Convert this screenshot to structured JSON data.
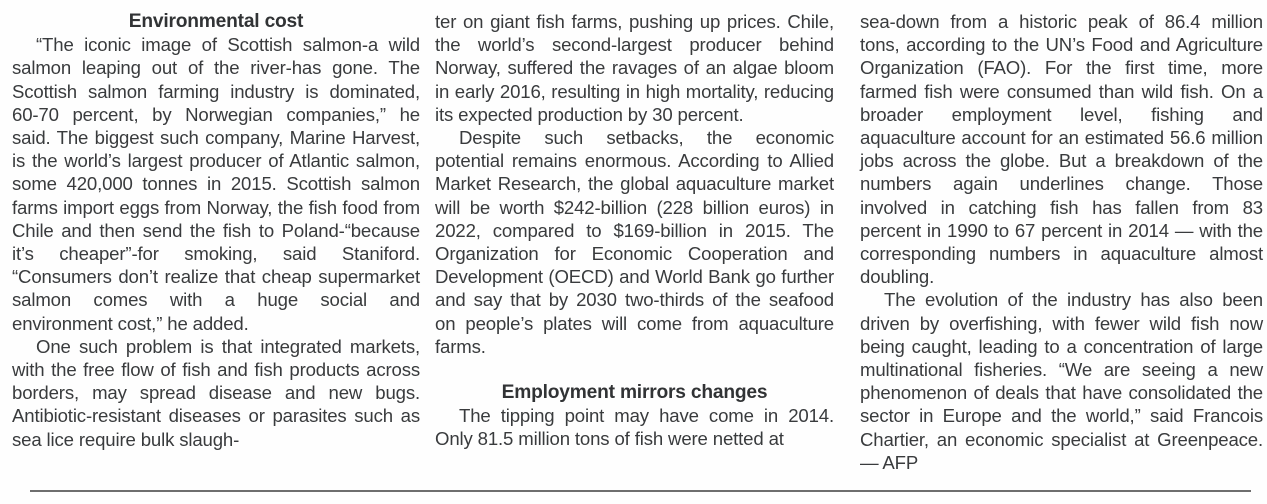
{
  "article": {
    "text_color": "#393b3d",
    "rule_color": "#6e6e6e",
    "byline": "AFP",
    "columns": [
      {
        "heading": "Environmental cost",
        "para1": "“The iconic image of Scottish salmon-a wild salmon leaping out of the river-has gone. The Scottish salmon farming industry is dominated, 60-70 percent, by Norwegian companies,” he said. The biggest such company, Marine Harvest, is the world’s largest producer of Atlantic salmon, some 420,000 tonnes in 2015.  Scottish salmon farms import eggs from Norway, the fish food from Chile and then send the fish to Poland-“because it’s cheaper”-for smoking, said Staniford. “Consumers don’t realize that cheap supermarket salmon comes with a huge social and environment cost,” he added.",
        "para2": "One such problem is that integrated markets, with the free flow of fish and fish products across borders, may spread disease and new bugs.  Antibiotic-resistant diseases or parasites such as sea lice require bulk slaugh-"
      },
      {
        "para1": "ter on giant fish farms, pushing up prices. Chile, the world’s second-largest producer behind Norway, suffered the ravages of an algae bloom in early 2016, resulting in high mortality, reducing its expected production by 30 percent.",
        "para2": "Despite such setbacks, the economic potential remains enormous. According to Allied Market Research, the global aquaculture market will be worth $242-billion (228 billion euros) in 2022, compared to $169-billion in 2015. The Organization for Economic Cooperation and Development (OECD) and World Bank go further and say that by 2030 two-thirds of the seafood on people’s plates will come from aquaculture farms.",
        "heading": "Employment mirrors changes",
        "para3": "The tipping point may have come in 2014. Only 81.5 million tons of fish were netted at"
      },
      {
        "para1": "sea-down from a historic peak of 86.4 million tons, according to the UN’s Food and Agriculture Organization (FAO). For the first time, more farmed fish were consumed than wild fish.  On a broader employment level, fishing and aquaculture account for an estimated 56.6 million jobs across the globe. But a breakdown of the numbers again underlines change. Those involved in catching fish has fallen from 83 percent in 1990 to 67 percent in 2014 — with the corresponding numbers in aquaculture almost doubling.",
        "para2": "The evolution of the industry has also been driven by overfishing, with fewer wild fish now being caught, leading to a concentration of large multinational fisheries. “We are seeing a new phenomenon of deals that have consolidated the sector in Europe and the world,” said Francois Chartier, an economic specialist at Greenpeace. — AFP"
      }
    ]
  }
}
